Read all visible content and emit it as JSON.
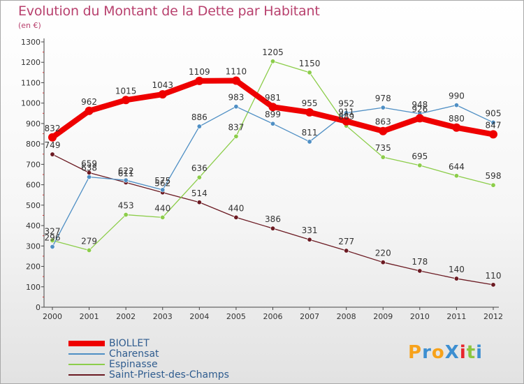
{
  "chart_data": {
    "type": "line",
    "title": "Evolution du Montant de la Dette par Habitant",
    "subtitle": "(en €)",
    "x": [
      "2000",
      "2001",
      "2002",
      "2003",
      "2004",
      "2005",
      "2006",
      "2007",
      "2008",
      "2009",
      "2010",
      "2011",
      "2012"
    ],
    "ylim": [
      0,
      1300
    ],
    "yticks": [
      0,
      100,
      200,
      300,
      400,
      500,
      600,
      700,
      800,
      900,
      1000,
      1100,
      1200,
      1300
    ],
    "grid": false,
    "legend_position": "bottom-left",
    "series": [
      {
        "name": "Saint-Priest-des-Champs",
        "color": "#6b1a22",
        "values": [
          749,
          659,
          611,
          562,
          514,
          440,
          386,
          331,
          277,
          220,
          178,
          140,
          110
        ],
        "labels": [
          "749",
          "659",
          "611",
          "562",
          "514",
          "440",
          "386",
          "331",
          "277",
          "220",
          "178",
          "140",
          "110"
        ]
      },
      {
        "name": "Espinasse",
        "color": "#8ccd4a",
        "values": [
          327,
          279,
          453,
          440,
          636,
          837,
          1205,
          1150,
          889,
          735,
          695,
          644,
          598
        ],
        "labels": [
          "327",
          "279",
          "453",
          "440",
          "636",
          "837",
          "1205",
          "1150",
          "889",
          "735",
          "695",
          "644",
          "598"
        ]
      },
      {
        "name": "Charensat",
        "color": "#4f8fc4",
        "values": [
          296,
          638,
          622,
          575,
          886,
          983,
          899,
          811,
          952,
          978,
          948,
          990,
          905
        ],
        "labels": [
          "296",
          "638",
          "622",
          "575",
          "886",
          "983",
          "899",
          "811",
          "952",
          "978",
          "948",
          "990",
          "905"
        ]
      },
      {
        "name": "BIOLLET",
        "color": "#ee0000",
        "values": [
          832,
          962,
          1015,
          1043,
          1109,
          1110,
          981,
          955,
          911,
          863,
          926,
          880,
          847
        ],
        "labels": [
          "832",
          "962",
          "1015",
          "1043",
          "1109",
          "1110",
          "981",
          "955",
          "911",
          "863",
          "926",
          "880",
          "847"
        ]
      }
    ]
  },
  "legend": {
    "items": [
      {
        "label": "BIOLLET",
        "color": "#ee0000",
        "thickness": 8
      },
      {
        "label": "Charensat",
        "color": "#4f8fc4",
        "thickness": 2
      },
      {
        "label": "Espinasse",
        "color": "#8ccd4a",
        "thickness": 2
      },
      {
        "label": "Saint-Priest-des-Champs",
        "color": "#6b1a22",
        "thickness": 2
      }
    ]
  },
  "logo": {
    "text": "ProXiti",
    "colors": [
      "#f7a21b",
      "#3d8fd1",
      "#f7a21b",
      "#3d8fd1",
      "#e8262d",
      "#8cc63f",
      "#3d8fd1"
    ]
  }
}
